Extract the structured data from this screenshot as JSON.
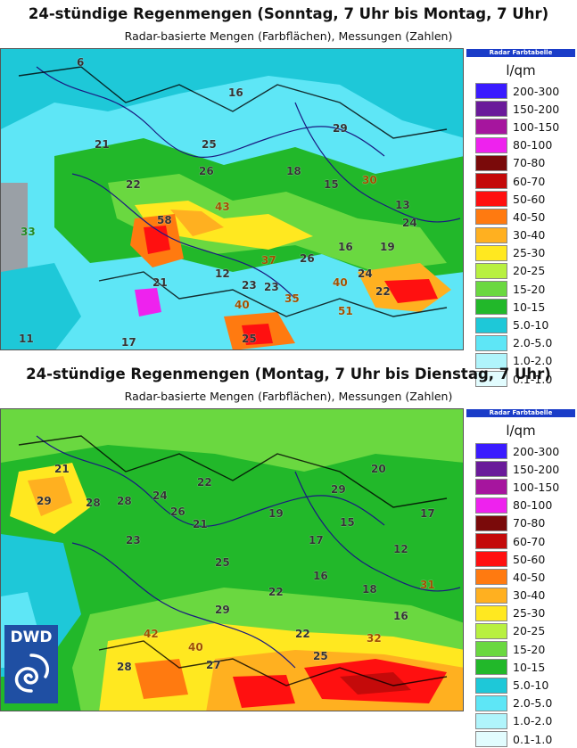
{
  "panels": [
    {
      "title": "24-stündige Regenmengen (Sonntag, 7 Uhr bis Montag, 7 Uhr)",
      "subtitle": "Radar-basierte Mengen (Farbflächen), Messungen (Zahlen)"
    },
    {
      "title": "24-stündige Regenmengen (Montag, 7 Uhr bis Dienstag, 7 Uhr)",
      "subtitle": "Radar-basierte Mengen (Farbflächen), Messungen (Zahlen)"
    }
  ],
  "legend": {
    "header": "Radar Farbtabelle",
    "unit": "l/qm",
    "entries": [
      {
        "label": "200-300",
        "color": "#3a1bff"
      },
      {
        "label": "150-200",
        "color": "#6a1a9a"
      },
      {
        "label": "100-150",
        "color": "#a6159e"
      },
      {
        "label": "80-100",
        "color": "#ee22ee"
      },
      {
        "label": "70-80",
        "color": "#7a0a0a"
      },
      {
        "label": "60-70",
        "color": "#c40a0a"
      },
      {
        "label": "50-60",
        "color": "#ff1010"
      },
      {
        "label": "40-50",
        "color": "#ff7a10"
      },
      {
        "label": "30-40",
        "color": "#ffb020"
      },
      {
        "label": "25-30",
        "color": "#ffe820"
      },
      {
        "label": "20-25",
        "color": "#b8f040"
      },
      {
        "label": "15-20",
        "color": "#6ad840"
      },
      {
        "label": "10-15",
        "color": "#22b82a"
      },
      {
        "label": "5.0-10",
        "color": "#1ec8d8"
      },
      {
        "label": "2.0-5.0",
        "color": "#5ee6f6"
      },
      {
        "label": "1.0-2.0",
        "color": "#b0f4fb"
      },
      {
        "label": "0.1-1.0",
        "color": "#e2fcfe"
      }
    ]
  },
  "measurements_top": [
    "33",
    "58",
    "25",
    "26",
    "22",
    "29",
    "16",
    "21",
    "18",
    "30",
    "43",
    "37",
    "40",
    "35",
    "51",
    "11",
    "17",
    "22",
    "26",
    "23",
    "16",
    "24",
    "19",
    "15",
    "13",
    "24",
    "40",
    "23",
    "21",
    "12",
    "25",
    "6"
  ],
  "measurements_bottom": [
    "21",
    "29",
    "28",
    "24",
    "26",
    "22",
    "21",
    "29",
    "23",
    "28",
    "25",
    "19",
    "17",
    "16",
    "42",
    "40",
    "29",
    "22",
    "27",
    "25",
    "15",
    "12",
    "18",
    "28",
    "32",
    "16",
    "31",
    "22",
    "17",
    "20"
  ],
  "logo": {
    "text": "DWD"
  }
}
